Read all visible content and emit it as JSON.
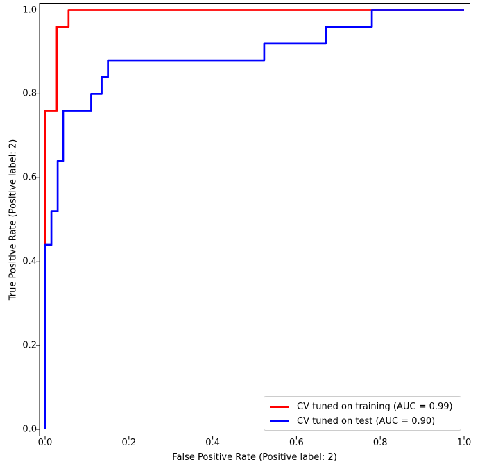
{
  "chart_data": {
    "type": "line",
    "subtype": "roc_step_curves",
    "title": "",
    "xlabel": "False Positive Rate (Positive label: 2)",
    "ylabel": "True Positive Rate (Positive label: 2)",
    "xlim": [
      -0.013,
      1.014
    ],
    "ylim": [
      -0.016,
      1.015
    ],
    "xticks": [
      0,
      0.2,
      0.4,
      0.6,
      0.8,
      1.0
    ],
    "xtick_labels": [
      "0.0",
      "0.2",
      "0.4",
      "0.6",
      "0.8",
      "1.0"
    ],
    "yticks": [
      0,
      0.2,
      0.4,
      0.6,
      0.8,
      1.0
    ],
    "ytick_labels": [
      "0.0",
      "0.2",
      "0.4",
      "0.6",
      "0.8",
      "1.0"
    ],
    "grid": false,
    "legend_position": "lower right",
    "series": [
      {
        "name": "CV tuned on training (AUC = 0.99)",
        "color": "#ff0000",
        "auc": 0.99,
        "points": [
          [
            0,
            0
          ],
          [
            0,
            0.76
          ],
          [
            0.028,
            0.76
          ],
          [
            0.028,
            0.96
          ],
          [
            0.056,
            0.96
          ],
          [
            0.056,
            1.0
          ],
          [
            1.0,
            1.0
          ]
        ]
      },
      {
        "name": "CV tuned on test (AUC = 0.90)",
        "color": "#0000ff",
        "auc": 0.9,
        "points": [
          [
            0,
            0
          ],
          [
            0,
            0.44
          ],
          [
            0.015,
            0.44
          ],
          [
            0.015,
            0.52
          ],
          [
            0.03,
            0.52
          ],
          [
            0.03,
            0.64
          ],
          [
            0.043,
            0.64
          ],
          [
            0.043,
            0.76
          ],
          [
            0.11,
            0.76
          ],
          [
            0.11,
            0.8
          ],
          [
            0.135,
            0.8
          ],
          [
            0.135,
            0.84
          ],
          [
            0.15,
            0.84
          ],
          [
            0.15,
            0.88
          ],
          [
            0.523,
            0.88
          ],
          [
            0.523,
            0.92
          ],
          [
            0.67,
            0.92
          ],
          [
            0.67,
            0.96
          ],
          [
            0.78,
            0.96
          ],
          [
            0.78,
            1.0
          ],
          [
            1.0,
            1.0
          ]
        ]
      }
    ]
  }
}
